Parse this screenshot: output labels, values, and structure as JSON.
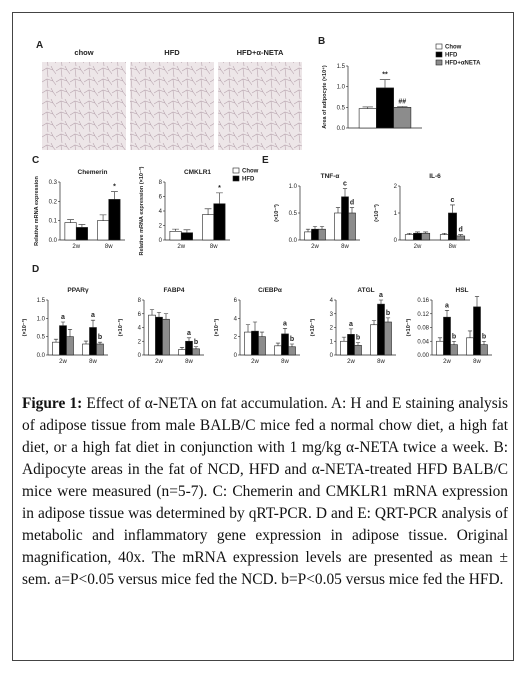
{
  "panels": {
    "labels": {
      "A": "A",
      "B": "B",
      "C": "C",
      "D": "D",
      "E": "E"
    },
    "micrographs": [
      "chow",
      "HFD",
      "HFD+α-NETA"
    ]
  },
  "chart_data": [
    {
      "type": "bar",
      "ylabel": "Area of adipocyte (×10⁴)",
      "ylim": [
        0,
        1.5
      ],
      "yticks": [
        {
          "value": 0,
          "label": "0.0"
        },
        0.5,
        {
          "value": 1,
          "label": "1.0"
        },
        1.5
      ],
      "legend": true,
      "series": [
        {
          "name": "Chow",
          "color": "#ffffff",
          "values": [
            0.47
          ],
          "errors": [
            0.04
          ]
        },
        {
          "name": "HFD",
          "color": "#000000",
          "values": [
            0.97
          ],
          "errors": [
            0.2
          ],
          "annotations": [
            "**"
          ]
        },
        {
          "name": "HFD+αNETA",
          "color": "#8c8c8c",
          "values": [
            0.5
          ],
          "errors": [
            0.02
          ],
          "annotations": [
            "##"
          ]
        }
      ]
    },
    {
      "type": "bar",
      "title": "Chemerin",
      "ylabel": "Relative mRNA expression",
      "categories": [
        "2w",
        "8w"
      ],
      "ylim": [
        0,
        0.3
      ],
      "yticks": [
        {
          "value": 0,
          "label": "0.0"
        },
        0.1,
        0.2,
        0.3
      ],
      "series": [
        {
          "color": "#ffffff",
          "values": [
            0.09,
            0.1
          ],
          "errors": [
            0.015,
            0.03
          ]
        },
        {
          "color": "#000000",
          "values": [
            0.065,
            0.21
          ],
          "errors": [
            0.015,
            0.04
          ],
          "annotations": [
            null,
            "*"
          ]
        }
      ]
    },
    {
      "type": "bar",
      "title": "CMKLR1",
      "ylabel": "Relative mRNA expression (×10⁻³)",
      "categories": [
        "2w",
        "8w"
      ],
      "ylim": [
        0,
        8
      ],
      "yticks": [
        0,
        2,
        4,
        6,
        8
      ],
      "legend": true,
      "series": [
        {
          "name": "Chow",
          "color": "#ffffff",
          "values": [
            1.2,
            3.5
          ],
          "errors": [
            0.3,
            0.8
          ]
        },
        {
          "name": "HFD",
          "color": "#000000",
          "values": [
            1.0,
            5.0
          ],
          "errors": [
            0.4,
            1.5
          ],
          "annotations": [
            null,
            "*"
          ]
        }
      ]
    },
    {
      "type": "bar",
      "title": "TNF-α",
      "ylabel": "(×10⁻³)",
      "categories": [
        "2w",
        "8w"
      ],
      "ylim": [
        0,
        1
      ],
      "yticks": [
        {
          "value": 0,
          "label": "0.0"
        },
        0.5,
        {
          "value": 1,
          "label": "1.0"
        }
      ],
      "series": [
        {
          "color": "#ffffff",
          "values": [
            0.15,
            0.5
          ],
          "errors": [
            0.05,
            0.1
          ]
        },
        {
          "color": "#000000",
          "values": [
            0.2,
            0.8
          ],
          "errors": [
            0.05,
            0.15
          ],
          "annotations": [
            null,
            "c"
          ]
        },
        {
          "color": "#8c8c8c",
          "values": [
            0.2,
            0.5
          ],
          "errors": [
            0.05,
            0.1
          ],
          "annotations": [
            null,
            "d"
          ]
        }
      ]
    },
    {
      "type": "bar",
      "title": "IL-6",
      "ylabel": "(×10⁻³)",
      "categories": [
        "2w",
        "8w"
      ],
      "ylim": [
        0,
        2
      ],
      "yticks": [
        0,
        1,
        2
      ],
      "series": [
        {
          "color": "#ffffff",
          "values": [
            0.2,
            0.2
          ],
          "errors": [
            0.05,
            0.05
          ]
        },
        {
          "color": "#000000",
          "values": [
            0.25,
            1.0
          ],
          "errors": [
            0.05,
            0.3
          ],
          "annotations": [
            null,
            "c"
          ]
        },
        {
          "color": "#8c8c8c",
          "values": [
            0.25,
            0.15
          ],
          "errors": [
            0.05,
            0.05
          ],
          "annotations": [
            null,
            "d"
          ]
        }
      ]
    },
    {
      "type": "bar",
      "title": "PPARγ",
      "ylabel": "(×10⁻³)",
      "categories": [
        "2w",
        "8w"
      ],
      "ylim": [
        0,
        1.5
      ],
      "yticks": [
        {
          "value": 0,
          "label": "0.0"
        },
        0.5,
        {
          "value": 1,
          "label": "1.0"
        },
        1.5
      ],
      "series": [
        {
          "color": "#ffffff",
          "values": [
            0.35,
            0.3
          ],
          "errors": [
            0.08,
            0.08
          ]
        },
        {
          "color": "#000000",
          "values": [
            0.8,
            0.75
          ],
          "errors": [
            0.1,
            0.2
          ],
          "annotations": [
            "a",
            "a"
          ]
        },
        {
          "color": "#8c8c8c",
          "values": [
            0.5,
            0.3
          ],
          "errors": [
            0.2,
            0.05
          ],
          "annotations": [
            null,
            "b"
          ]
        }
      ]
    },
    {
      "type": "bar",
      "title": "FABP4",
      "ylabel": "(×10⁻³)",
      "categories": [
        "2w",
        "8w"
      ],
      "ylim": [
        0,
        8
      ],
      "yticks": [
        0,
        2,
        4,
        6,
        8
      ],
      "series": [
        {
          "color": "#ffffff",
          "values": [
            5.8,
            0.8
          ],
          "errors": [
            0.8,
            0.3
          ]
        },
        {
          "color": "#000000",
          "values": [
            5.5,
            2.0
          ],
          "errors": [
            0.7,
            0.5
          ],
          "annotations": [
            null,
            "a"
          ]
        },
        {
          "color": "#8c8c8c",
          "values": [
            5.2,
            0.9
          ],
          "errors": [
            0.8,
            0.3
          ],
          "annotations": [
            null,
            "b"
          ]
        }
      ]
    },
    {
      "type": "bar",
      "title": "C/EBPα",
      "ylabel": "(×10⁻³)",
      "categories": [
        "2w",
        "8w"
      ],
      "ylim": [
        0,
        6
      ],
      "yticks": [
        0,
        2,
        4,
        6
      ],
      "series": [
        {
          "color": "#ffffff",
          "values": [
            2.5,
            1.0
          ],
          "errors": [
            0.8,
            0.3
          ]
        },
        {
          "color": "#000000",
          "values": [
            2.6,
            2.3
          ],
          "errors": [
            1.0,
            0.6
          ],
          "annotations": [
            null,
            "a"
          ]
        },
        {
          "color": "#8c8c8c",
          "values": [
            2.0,
            0.9
          ],
          "errors": [
            0.5,
            0.3
          ],
          "annotations": [
            null,
            "b"
          ]
        }
      ]
    },
    {
      "type": "bar",
      "title": "ATGL",
      "ylabel": "(×10⁻³)",
      "categories": [
        "2w",
        "8w"
      ],
      "ylim": [
        0,
        4
      ],
      "yticks": [
        0,
        1,
        2,
        3,
        4
      ],
      "series": [
        {
          "color": "#ffffff",
          "values": [
            1.0,
            2.2
          ],
          "errors": [
            0.3,
            0.3
          ]
        },
        {
          "color": "#000000",
          "values": [
            1.5,
            3.7
          ],
          "errors": [
            0.4,
            0.3
          ],
          "annotations": [
            "a",
            "a"
          ]
        },
        {
          "color": "#8c8c8c",
          "values": [
            0.7,
            2.4
          ],
          "errors": [
            0.2,
            0.3
          ],
          "annotations": [
            "b",
            "b"
          ]
        }
      ]
    },
    {
      "type": "bar",
      "title": "HSL",
      "ylabel": "(×10⁻³)",
      "categories": [
        "2w",
        "8w"
      ],
      "ylim": [
        0,
        0.16
      ],
      "yticks": [
        {
          "value": 0,
          "label": "0.00"
        },
        0.04,
        0.08,
        0.12,
        0.16
      ],
      "series": [
        {
          "color": "#ffffff",
          "values": [
            0.04,
            0.05
          ],
          "errors": [
            0.01,
            0.02
          ]
        },
        {
          "color": "#000000",
          "values": [
            0.11,
            0.14
          ],
          "errors": [
            0.02,
            0.03
          ],
          "annotations": [
            "a",
            null
          ]
        },
        {
          "color": "#8c8c8c",
          "values": [
            0.03,
            0.03
          ],
          "errors": [
            0.01,
            0.01
          ],
          "annotations": [
            "b",
            "b"
          ]
        }
      ]
    }
  ],
  "caption": {
    "label": "Figure 1:",
    "text": "Effect of α-NETA on fat accumulation. A: H and E staining analysis of adipose tissue from male BALB/C mice fed a normal chow diet, a high fat diet, or a high fat diet in conjunction with 1 mg/kg α-NETA twice a week. B: Adipocyte areas in the fat of NCD, HFD and α-NETA-treated HFD BALB/C mice were measured (n=5-7). C: Chemerin and CMKLR1 mRNA expression in adipose tissue was determined by qRT-PCR. D and E: QRT-PCR analysis of metabolic and inflammatory gene expression in adipose tissue. Original magnification, 40x. The mRNA expression levels are presented as mean ± sem. a=P<0.05 versus mice fed the NCD. b=P<0.05 versus mice fed the HFD."
  }
}
